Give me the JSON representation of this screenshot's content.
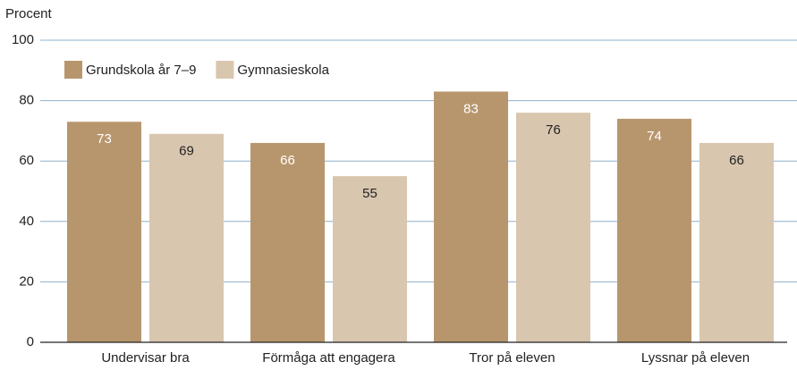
{
  "chart_data": {
    "type": "bar",
    "y_label": "Procent",
    "categories": [
      "Undervisar bra",
      "Förmåga att engagera",
      "Tror på eleven",
      "Lyssnar på eleven"
    ],
    "series": [
      {
        "name": "Grundskola år 7–9",
        "color": "#b8966d",
        "values": [
          73,
          66,
          83,
          74
        ]
      },
      {
        "name": "Gymnasieskola",
        "color": "#d9c6af",
        "values": [
          69,
          55,
          76,
          66
        ]
      }
    ],
    "ylim": [
      0,
      100
    ],
    "yticks": [
      0,
      20,
      40,
      60,
      80,
      100
    ],
    "grid": true,
    "legend": "upper left"
  }
}
